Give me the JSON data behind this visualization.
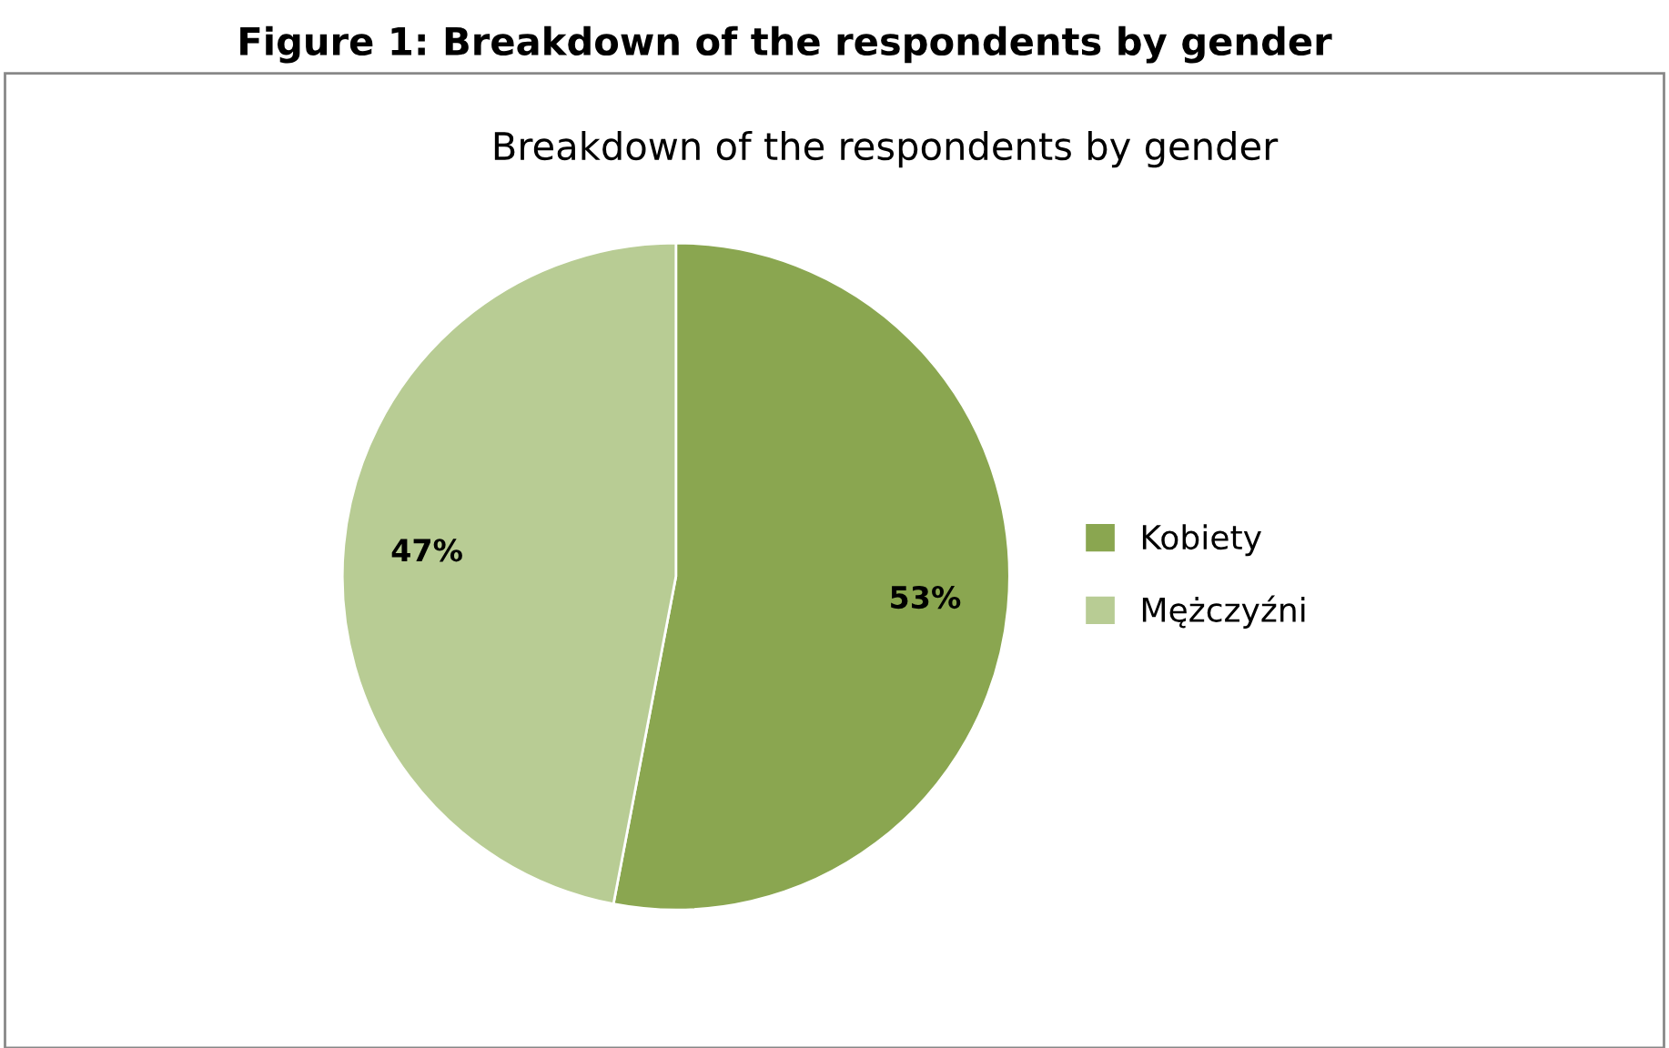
{
  "chart_data": {
    "type": "pie",
    "title": "Figure 1: Breakdown of the respondents by gender",
    "subtitle": "Breakdown of the respondents by gender",
    "categories": [
      "Kobiety",
      "Mężczyźni"
    ],
    "values": [
      53,
      47
    ],
    "colors": [
      "#8aa650",
      "#b8cc94"
    ],
    "value_labels": [
      "53%",
      "47%"
    ],
    "legend": "right"
  }
}
